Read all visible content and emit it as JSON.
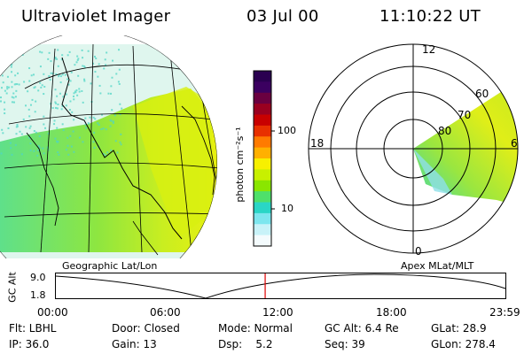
{
  "header": {
    "title": "Ultraviolet Imager",
    "date": "03 Jul 00",
    "time": "11:10:22 UT"
  },
  "colorbar": {
    "unit_label": "photon cm⁻²s⁻¹",
    "ticks": [
      "100",
      "10"
    ],
    "colors": [
      "#2a0050",
      "#3b0060",
      "#6a0040",
      "#9a0020",
      "#c80000",
      "#e83000",
      "#ff7a00",
      "#ffb000",
      "#f7f000",
      "#c8f000",
      "#8ae600",
      "#4ee06a",
      "#2ad6c6",
      "#7de6ee",
      "#c8f2f8",
      "#f4fbfd"
    ]
  },
  "geo_map": {
    "caption": "Geographic Lat/Lon"
  },
  "polar_plot": {
    "caption": "Apex MLat/MLT",
    "mlt_labels": [
      "12",
      "18",
      "6",
      "0"
    ],
    "lat_labels": [
      "60",
      "70",
      "80"
    ]
  },
  "timeline": {
    "axis_label": "GC Alt",
    "y_values": [
      "9.0",
      "1.8"
    ],
    "time_ticks": [
      "00:00",
      "06:00",
      "12:00",
      "18:00",
      "23:59"
    ],
    "marker_time": "11:10"
  },
  "footer": {
    "row1": [
      "Flt: LBHL",
      "Door: Closed",
      "Mode: Normal",
      "GC Alt: 6.4 Re",
      "GLat: 28.9"
    ],
    "row2": [
      "IP: 36.0",
      "Gain: 13",
      "Dsp:    5.2",
      "Seq: 39",
      "GLon: 278.4"
    ]
  }
}
